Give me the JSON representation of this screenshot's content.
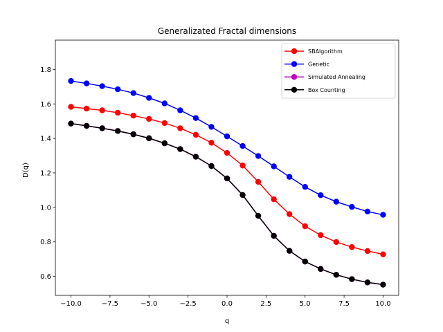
{
  "chart_data": {
    "type": "line",
    "title": "Generalizated Fractal dimensions",
    "xlabel": "q",
    "ylabel": "D(q)",
    "xlim": [
      -11,
      11
    ],
    "ylim": [
      0.49,
      1.97
    ],
    "xticks": [
      -10.0,
      -7.5,
      -5.0,
      -2.5,
      0.0,
      2.5,
      5.0,
      7.5,
      10.0
    ],
    "xtick_labels": [
      "−10.0",
      "−7.5",
      "−5.0",
      "−2.5",
      "0.0",
      "2.5",
      "5.0",
      "7.5",
      "10.0"
    ],
    "yticks": [
      0.6,
      0.8,
      1.0,
      1.2,
      1.4,
      1.6,
      1.8
    ],
    "ytick_labels": [
      "0.6",
      "0.8",
      "1.0",
      "1.2",
      "1.4",
      "1.6",
      "1.8"
    ],
    "grid": false,
    "legend_position": "top-right",
    "x": [
      -10,
      -9,
      -8,
      -7,
      -6,
      -5,
      -4,
      -3,
      -2,
      -1,
      0,
      1,
      2,
      3,
      4,
      5,
      6,
      7,
      8,
      9,
      10
    ],
    "series": [
      {
        "name": "SBAlgorithm",
        "color": "#ff0000",
        "values": [
          1.583,
          1.573,
          1.563,
          1.549,
          1.532,
          1.513,
          1.489,
          1.459,
          1.421,
          1.375,
          1.316,
          1.243,
          1.148,
          1.047,
          0.961,
          0.891,
          0.839,
          0.799,
          0.77,
          0.747,
          0.728
        ]
      },
      {
        "name": "Genetic",
        "color": "#0000ff",
        "values": [
          1.733,
          1.719,
          1.703,
          1.685,
          1.663,
          1.635,
          1.603,
          1.563,
          1.518,
          1.467,
          1.412,
          1.356,
          1.298,
          1.238,
          1.177,
          1.119,
          1.071,
          1.033,
          1.003,
          0.976,
          0.957
        ]
      },
      {
        "name": "Simulated Annealing",
        "color": "#bf00bf",
        "values": [
          1.486,
          1.473,
          1.459,
          1.443,
          1.424,
          1.401,
          1.372,
          1.338,
          1.294,
          1.24,
          1.168,
          1.072,
          0.951,
          0.835,
          0.748,
          0.686,
          0.643,
          0.609,
          0.584,
          0.565,
          0.552
        ]
      },
      {
        "name": "Box Counting",
        "color": "#000000",
        "values": [
          1.486,
          1.473,
          1.459,
          1.443,
          1.424,
          1.401,
          1.372,
          1.338,
          1.294,
          1.24,
          1.168,
          1.072,
          0.951,
          0.835,
          0.748,
          0.686,
          0.643,
          0.609,
          0.584,
          0.565,
          0.552
        ]
      }
    ]
  }
}
